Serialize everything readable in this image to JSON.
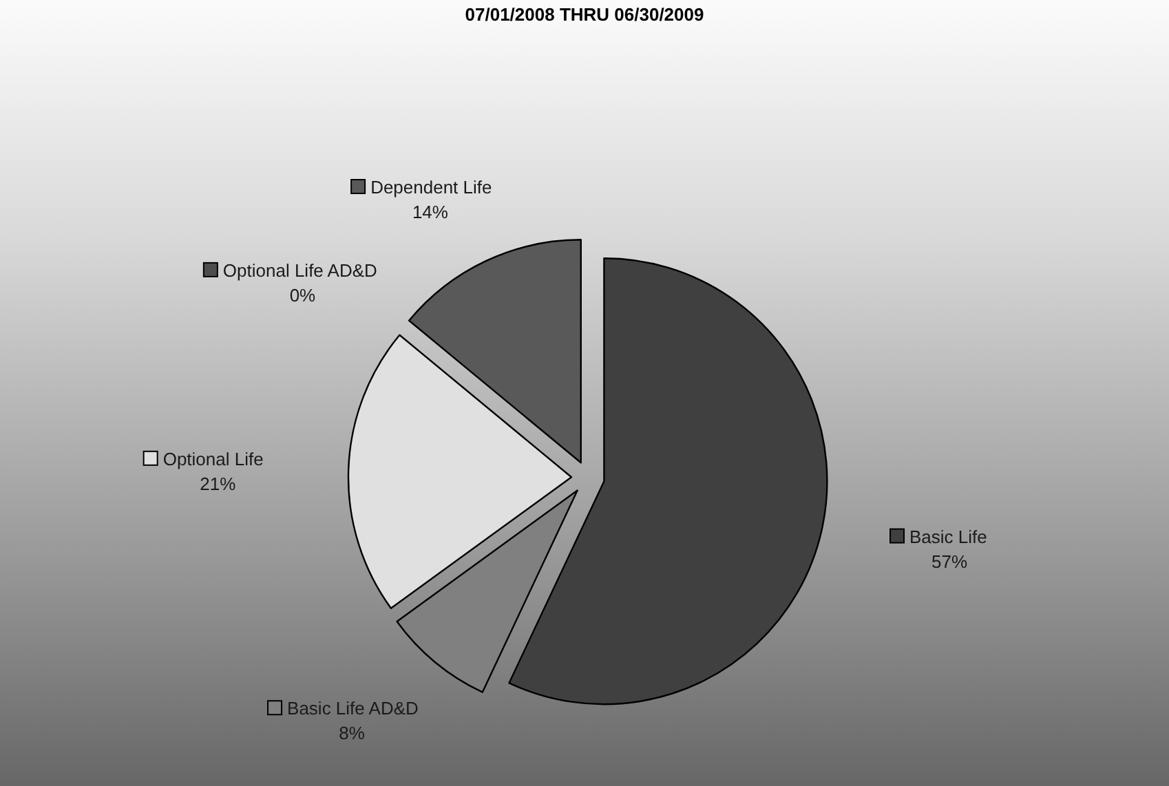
{
  "chart_data": {
    "type": "pie",
    "title": "07/01/2008 THRU 06/30/2009",
    "categories": [
      "Basic Life",
      "Basic Life AD&D",
      "Optional Life",
      "Optional Life AD&D",
      "Dependent Life"
    ],
    "values": [
      57,
      8,
      21,
      0,
      14
    ],
    "value_labels": [
      "57%",
      "8%",
      "21%",
      "0%",
      "14%"
    ],
    "colors": [
      "#404040",
      "#808080",
      "#e0e0e0",
      "#4d4d4d",
      "#595959"
    ],
    "legend": "left"
  }
}
